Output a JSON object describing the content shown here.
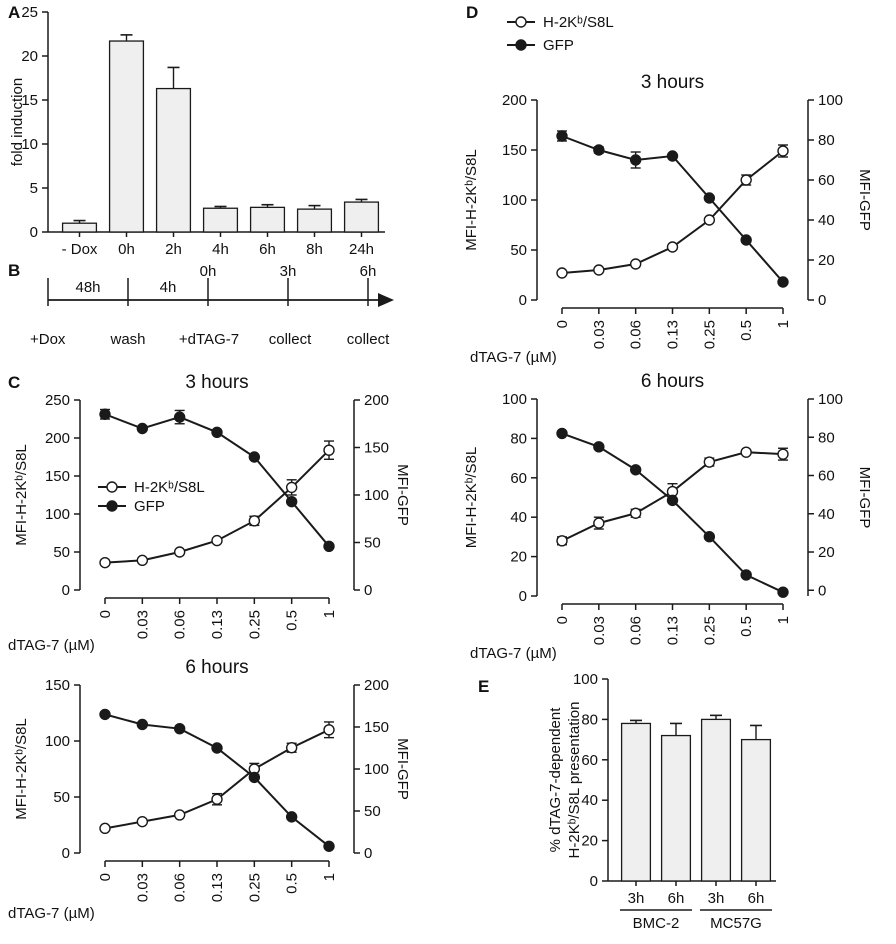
{
  "colors": {
    "line": "#1a1a1a",
    "bar_fill": "#efefef",
    "open_marker": "#ffffff",
    "filled_marker": "#1a1a1a"
  },
  "chart_data": [
    {
      "id": "A",
      "panel_label": "A",
      "type": "bar",
      "ylabel": "fold induction",
      "categories": [
        "- Dox",
        "0h",
        "2h",
        "4h",
        "6h",
        "8h",
        "24h"
      ],
      "values": [
        1.0,
        21.7,
        16.3,
        2.7,
        2.8,
        2.6,
        3.4
      ],
      "errors": [
        0.3,
        0.7,
        2.4,
        0.2,
        0.3,
        0.4,
        0.3
      ],
      "ylim": [
        0,
        25
      ],
      "yticks": [
        0,
        5,
        10,
        15,
        20,
        25
      ]
    },
    {
      "id": "B",
      "panel_label": "B",
      "type": "timeline",
      "intervals": [
        "48h",
        "4h"
      ],
      "time_labels": [
        "0h",
        "3h",
        "6h"
      ],
      "events": [
        "+Dox",
        "wash",
        "+dTAG-7",
        "collect",
        "collect"
      ]
    },
    {
      "id": "C3",
      "panel_label": "C",
      "type": "line",
      "title": "3 hours",
      "xlabel": "dTAG-7 (µM)",
      "ylabel_left": "MFI-H-2Kᵇ/S8L",
      "ylabel_right": "MFI-GFP",
      "categories": [
        "0",
        "0.03",
        "0.06",
        "0.13",
        "0.25",
        "0.5",
        "1"
      ],
      "left_ylim": [
        0,
        250
      ],
      "left_yticks": [
        0,
        50,
        100,
        150,
        200,
        250
      ],
      "right_ylim": [
        0,
        200
      ],
      "right_yticks": [
        0,
        50,
        100,
        150,
        200
      ],
      "legend": {
        "position": "center-left",
        "entries": [
          "H-2Kᵇ/S8L",
          "GFP"
        ]
      },
      "series": [
        {
          "name": "H-2Kᵇ/S8L",
          "axis": "left",
          "marker": "open",
          "values": [
            36,
            39,
            50,
            65,
            91,
            135,
            184
          ],
          "errors": [
            2,
            2,
            2,
            2,
            6,
            10,
            12
          ]
        },
        {
          "name": "GFP",
          "axis": "right",
          "marker": "filled",
          "values": [
            185,
            170,
            182,
            166,
            140,
            93,
            46
          ],
          "errors": [
            5,
            2,
            7,
            2,
            2,
            2,
            2
          ]
        }
      ]
    },
    {
      "id": "C6",
      "panel_label": "",
      "type": "line",
      "title": "6 hours",
      "xlabel": "dTAG-7 (µM)",
      "ylabel_left": "MFI-H-2Kᵇ/S8L",
      "ylabel_right": "MFI-GFP",
      "categories": [
        "0",
        "0.03",
        "0.06",
        "0.13",
        "0.25",
        "0.5",
        "1"
      ],
      "left_ylim": [
        0,
        150
      ],
      "left_yticks": [
        0,
        50,
        100,
        150
      ],
      "right_ylim": [
        0,
        200
      ],
      "right_yticks": [
        0,
        50,
        100,
        150,
        200
      ],
      "series": [
        {
          "name": "H-2Kᵇ/S8L",
          "axis": "left",
          "marker": "open",
          "values": [
            22,
            28,
            34,
            48,
            75,
            94,
            110
          ],
          "errors": [
            1,
            1,
            1,
            5,
            5,
            4,
            7
          ]
        },
        {
          "name": "GFP",
          "axis": "right",
          "marker": "filled",
          "values": [
            165,
            153,
            148,
            125,
            90,
            43,
            8
          ],
          "errors": [
            1,
            1,
            1,
            1,
            2,
            1,
            1
          ]
        }
      ]
    },
    {
      "id": "D3",
      "panel_label": "D",
      "type": "line",
      "title": "3 hours",
      "xlabel": "dTAG-7 (µM)",
      "ylabel_left": "MFI-H-2Kᵇ/S8L",
      "ylabel_right": "MFI-GFP",
      "categories": [
        "0",
        "0.03",
        "0.06",
        "0.13",
        "0.25",
        "0.5",
        "1"
      ],
      "left_ylim": [
        0,
        200
      ],
      "left_yticks": [
        0,
        50,
        100,
        150,
        200
      ],
      "right_ylim": [
        0,
        100
      ],
      "right_yticks": [
        0,
        20,
        40,
        60,
        80,
        100
      ],
      "legend": {
        "position": "top-left",
        "entries": [
          "H-2Kᵇ/S8L",
          "GFP"
        ]
      },
      "series": [
        {
          "name": "H-2Kᵇ/S8L",
          "axis": "left",
          "marker": "open",
          "values": [
            27,
            30,
            36,
            53,
            80,
            120,
            149
          ],
          "errors": [
            1,
            1,
            1,
            1,
            2,
            5,
            6
          ]
        },
        {
          "name": "GFP",
          "axis": "right",
          "marker": "filled",
          "values": [
            82,
            75,
            70,
            72,
            51,
            30,
            9
          ],
          "errors": [
            2.5,
            1.5,
            4,
            1,
            1,
            1,
            1
          ]
        }
      ]
    },
    {
      "id": "D6",
      "panel_label": "",
      "type": "line",
      "title": "6 hours",
      "xlabel": "dTAG-7 (µM)",
      "ylabel_left": "MFI-H-2Kᵇ/S8L",
      "ylabel_right": "MFI-GFP",
      "categories": [
        "0",
        "0.03",
        "0.06",
        "0.13",
        "0.25",
        "0.5",
        "1"
      ],
      "left_ylim": [
        0,
        100
      ],
      "left_yticks": [
        0,
        20,
        40,
        60,
        80,
        100
      ],
      "right_ylim": [
        -3,
        100
      ],
      "right_yticks": [
        0,
        20,
        40,
        60,
        80,
        100
      ],
      "series": [
        {
          "name": "H-2Kᵇ/S8L",
          "axis": "left",
          "marker": "open",
          "values": [
            28,
            37,
            42,
            53,
            68,
            73,
            72
          ],
          "errors": [
            2,
            3,
            2,
            4,
            2,
            1,
            3
          ]
        },
        {
          "name": "GFP",
          "axis": "right",
          "marker": "filled",
          "values": [
            82,
            75,
            63,
            47,
            28,
            8,
            -1
          ],
          "errors": [
            1,
            1,
            1,
            1,
            1,
            1,
            1
          ]
        }
      ]
    },
    {
      "id": "E",
      "panel_label": "E",
      "type": "bar",
      "ylabel": "% dTAG-7-dependent H-2Kᵇ/S8L presentation",
      "ylabel_lines": [
        "% dTAG-7-dependent",
        "H-2Kᵇ/S8L presentation"
      ],
      "categories": [
        "3h",
        "6h",
        "3h",
        "6h"
      ],
      "groups": [
        {
          "name": "BMC-2",
          "members": [
            0,
            1
          ]
        },
        {
          "name": "MC57G",
          "members": [
            2,
            3
          ]
        }
      ],
      "values": [
        78,
        72,
        80,
        70
      ],
      "errors": [
        1.5,
        6,
        2,
        7
      ],
      "ylim": [
        0,
        100
      ],
      "yticks": [
        0,
        20,
        40,
        60,
        80,
        100
      ]
    }
  ]
}
